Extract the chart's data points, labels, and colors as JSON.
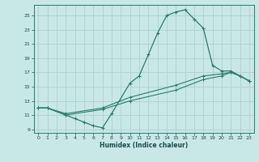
{
  "title": "",
  "xlabel": "Humidex (Indice chaleur)",
  "bg_color": "#c8e8e8",
  "line_color": "#2a7a6a",
  "grid_color": "#b0d0d0",
  "xlim": [
    -0.5,
    23.5
  ],
  "ylim": [
    8.5,
    26.5
  ],
  "xticks": [
    0,
    1,
    2,
    3,
    4,
    5,
    6,
    7,
    8,
    9,
    10,
    11,
    12,
    13,
    14,
    15,
    16,
    17,
    18,
    19,
    20,
    21,
    22,
    23
  ],
  "yticks": [
    9,
    11,
    13,
    15,
    17,
    19,
    21,
    23,
    25
  ],
  "curve1_x": [
    0,
    1,
    3,
    4,
    5,
    6,
    7,
    8,
    10,
    11,
    12,
    13,
    14,
    15,
    16,
    17,
    18,
    19,
    20,
    21,
    22,
    23
  ],
  "curve1_y": [
    12.0,
    12.0,
    11.0,
    10.5,
    10.0,
    9.5,
    9.2,
    11.2,
    15.5,
    16.5,
    19.5,
    22.5,
    25.0,
    25.5,
    25.8,
    24.5,
    23.2,
    18.0,
    17.2,
    17.2,
    16.5,
    15.8
  ],
  "curve2_x": [
    0,
    1,
    3,
    7,
    10,
    15,
    18,
    20,
    21,
    22,
    23
  ],
  "curve2_y": [
    12.0,
    12.0,
    11.0,
    11.8,
    13.0,
    14.5,
    16.0,
    16.5,
    17.0,
    16.5,
    15.8
  ],
  "curve3_x": [
    0,
    1,
    3,
    7,
    10,
    15,
    18,
    20,
    21,
    22,
    23
  ],
  "curve3_y": [
    12.0,
    12.0,
    11.2,
    12.0,
    13.5,
    15.2,
    16.5,
    16.8,
    17.0,
    16.5,
    15.8
  ]
}
